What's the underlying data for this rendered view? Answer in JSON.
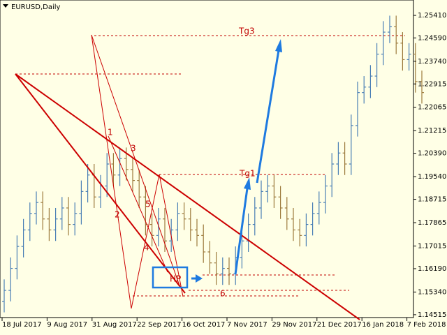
{
  "chart_data": {
    "type": "ohlc",
    "title": "EURUSD,Daily",
    "up_color": "#4a7fb5",
    "down_color": "#9c7a3c",
    "grid": false,
    "categories": [
      "18 Jul 2017",
      null,
      null,
      null,
      null,
      null,
      null,
      "9 Aug 2017",
      null,
      null,
      null,
      null,
      null,
      null,
      "31 Aug 2017",
      null,
      null,
      null,
      null,
      null,
      null,
      "22 Sep 2017",
      null,
      null,
      null,
      null,
      null,
      null,
      "16 Oct 2017",
      null,
      null,
      null,
      null,
      null,
      null,
      "7 Nov 2017",
      null,
      null,
      null,
      null,
      null,
      null,
      "29 Nov 2017",
      null,
      null,
      null,
      null,
      null,
      null,
      "21 Dec 2017",
      null,
      null,
      null,
      null,
      null,
      null,
      "16 Jan 2018",
      null,
      null,
      null,
      null,
      null,
      null,
      "7 Feb 2018",
      null,
      null
    ],
    "open": [
      1.15,
      1.154,
      1.162,
      1.17,
      1.176,
      1.182,
      1.186,
      1.18,
      1.176,
      1.18,
      1.184,
      1.178,
      1.182,
      1.19,
      1.196,
      1.188,
      1.192,
      1.2,
      1.196,
      1.202,
      1.198,
      1.194,
      1.188,
      1.178,
      1.174,
      1.18,
      1.172,
      1.176,
      1.182,
      1.18,
      1.176,
      1.174,
      1.168,
      1.164,
      1.16,
      1.162,
      1.16,
      1.166,
      1.172,
      1.178,
      1.184,
      1.19,
      1.192,
      1.188,
      1.184,
      1.18,
      1.176,
      1.174,
      1.178,
      1.182,
      1.186,
      1.192,
      1.2,
      1.204,
      1.2,
      1.214,
      1.226,
      1.228,
      1.232,
      1.24,
      1.248,
      1.25,
      1.244,
      1.238,
      1.24,
      1.23
    ],
    "high": [
      1.158,
      1.166,
      1.174,
      1.18,
      1.186,
      1.19,
      1.19,
      1.184,
      1.184,
      1.188,
      1.188,
      1.186,
      1.194,
      1.2,
      1.2,
      1.196,
      1.204,
      1.204,
      1.206,
      1.206,
      1.202,
      1.198,
      1.192,
      1.182,
      1.184,
      1.184,
      1.18,
      1.186,
      1.186,
      1.184,
      1.18,
      1.178,
      1.172,
      1.168,
      1.166,
      1.166,
      1.17,
      1.176,
      1.182,
      1.188,
      1.194,
      1.196,
      1.196,
      1.192,
      1.188,
      1.184,
      1.18,
      1.182,
      1.186,
      1.19,
      1.196,
      1.204,
      1.208,
      1.208,
      1.218,
      1.23,
      1.232,
      1.236,
      1.244,
      1.252,
      1.254,
      1.254,
      1.248,
      1.244,
      1.244,
      1.234
    ],
    "low": [
      1.146,
      1.15,
      1.158,
      1.166,
      1.172,
      1.178,
      1.176,
      1.172,
      1.172,
      1.176,
      1.174,
      1.174,
      1.178,
      1.186,
      1.184,
      1.184,
      1.188,
      1.192,
      1.192,
      1.194,
      1.19,
      1.184,
      1.174,
      1.17,
      1.17,
      1.168,
      1.168,
      1.172,
      1.176,
      1.172,
      1.17,
      1.164,
      1.16,
      1.156,
      1.156,
      1.156,
      1.156,
      1.162,
      1.168,
      1.174,
      1.18,
      1.186,
      1.184,
      1.18,
      1.176,
      1.172,
      1.17,
      1.17,
      1.174,
      1.178,
      1.182,
      1.188,
      1.196,
      1.196,
      1.196,
      1.21,
      1.222,
      1.224,
      1.228,
      1.236,
      1.244,
      1.24,
      1.234,
      1.234,
      1.226,
      1.222
    ],
    "close": [
      1.154,
      1.162,
      1.17,
      1.176,
      1.182,
      1.186,
      1.18,
      1.176,
      1.18,
      1.184,
      1.178,
      1.182,
      1.19,
      1.196,
      1.188,
      1.192,
      1.2,
      1.196,
      1.202,
      1.198,
      1.194,
      1.188,
      1.178,
      1.174,
      1.18,
      1.172,
      1.176,
      1.182,
      1.18,
      1.176,
      1.174,
      1.168,
      1.164,
      1.16,
      1.162,
      1.16,
      1.166,
      1.172,
      1.178,
      1.184,
      1.19,
      1.192,
      1.188,
      1.184,
      1.18,
      1.176,
      1.174,
      1.178,
      1.182,
      1.186,
      1.192,
      1.2,
      1.204,
      1.2,
      1.214,
      1.226,
      1.228,
      1.232,
      1.24,
      1.248,
      1.25,
      1.244,
      1.238,
      1.24,
      1.23,
      1.226
    ],
    "ylim": [
      1.1403,
      1.2597
    ],
    "yticks": [
      {
        "value": 1.2541,
        "label": "1.25410"
      },
      {
        "value": 1.2459,
        "label": "1.24590"
      },
      {
        "value": 1.2374,
        "label": "1.23740"
      },
      {
        "value": 1.22915,
        "label": "1.22915"
      },
      {
        "value": 1.22065,
        "label": "1.22065"
      },
      {
        "value": 1.21215,
        "label": "1.21215"
      },
      {
        "value": 1.2039,
        "label": "1.20390"
      },
      {
        "value": 1.1954,
        "label": "1.19540"
      },
      {
        "value": 1.18715,
        "label": "1.18715"
      },
      {
        "value": 1.17865,
        "label": "1.17865"
      },
      {
        "value": 1.17015,
        "label": "1.17015"
      },
      {
        "value": 1.1619,
        "label": "1.16190"
      },
      {
        "value": 1.1534,
        "label": "1.15340"
      },
      {
        "value": 1.14515,
        "label": "1.14515"
      }
    ],
    "annotations": [
      "Tg3",
      "Tg1",
      "1",
      "3",
      "2",
      "5",
      "4",
      "HP",
      "6"
    ]
  }
}
